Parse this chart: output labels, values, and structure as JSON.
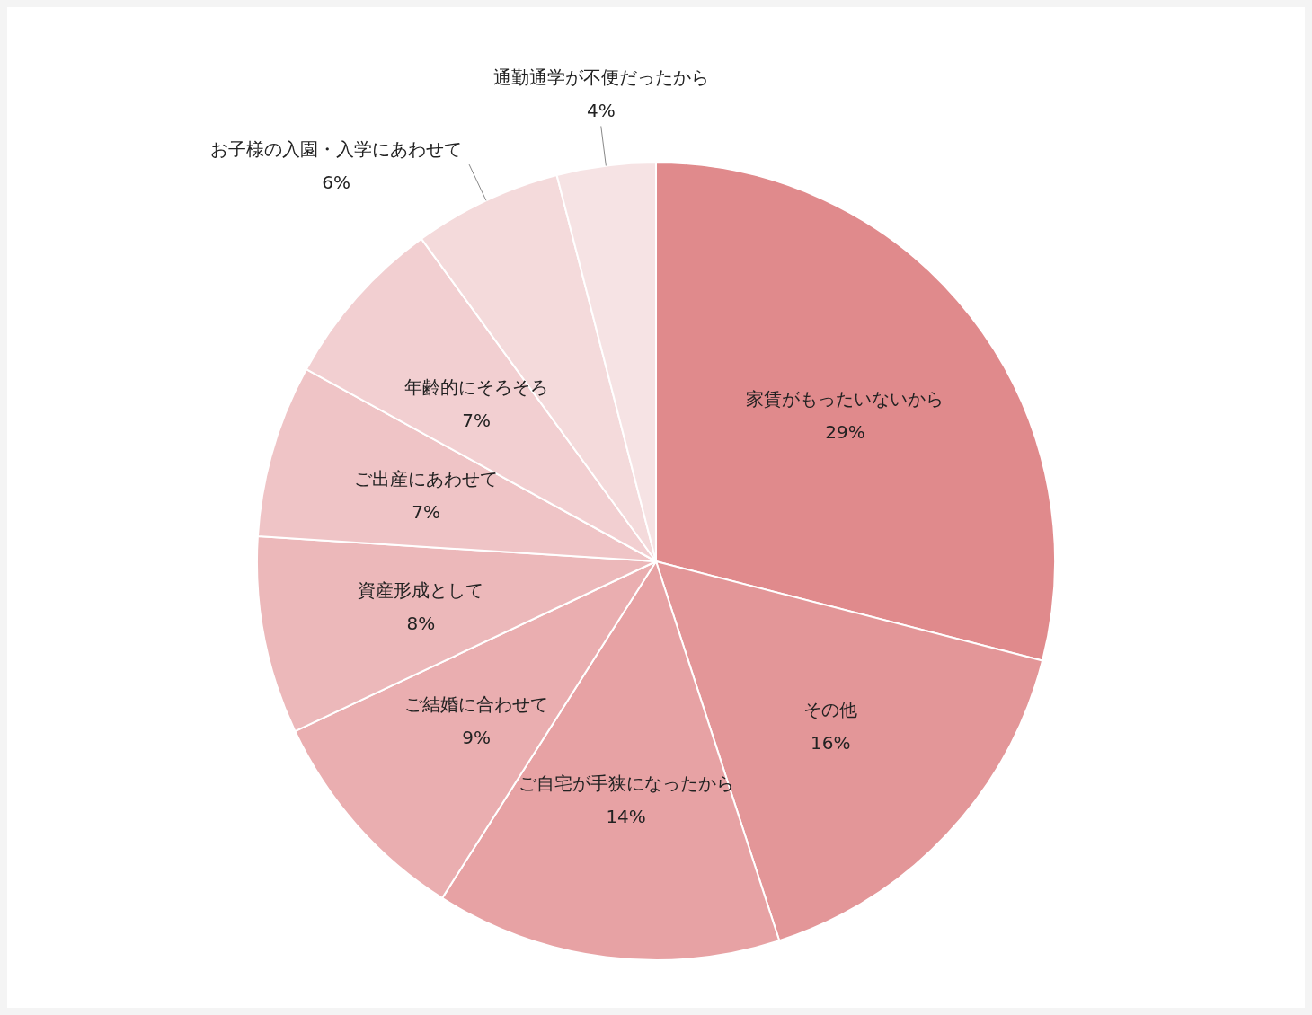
{
  "chart_data": {
    "type": "pie",
    "categories": [
      "家賃がもったいないから",
      "その他",
      "ご自宅が手狭になったから",
      "ご結婚に合わせて",
      "資産形成として",
      "ご出産にあわせて",
      "年齢的にそろそろ",
      "お子様の入園・入学にあわせて",
      "通勤通学が不便だったから"
    ],
    "values": [
      29,
      16,
      14,
      9,
      8,
      7,
      7,
      6,
      4
    ],
    "colors": [
      "#e08a8c",
      "#e39698",
      "#e7a2a4",
      "#eaaeb0",
      "#ecb8ba",
      "#efc4c6",
      "#f2cfd1",
      "#f4dadb",
      "#f6e3e4"
    ],
    "value_labels": [
      "29%",
      "16%",
      "14%",
      "9%",
      "8%",
      "7%",
      "7%",
      "6%",
      "4%"
    ]
  }
}
